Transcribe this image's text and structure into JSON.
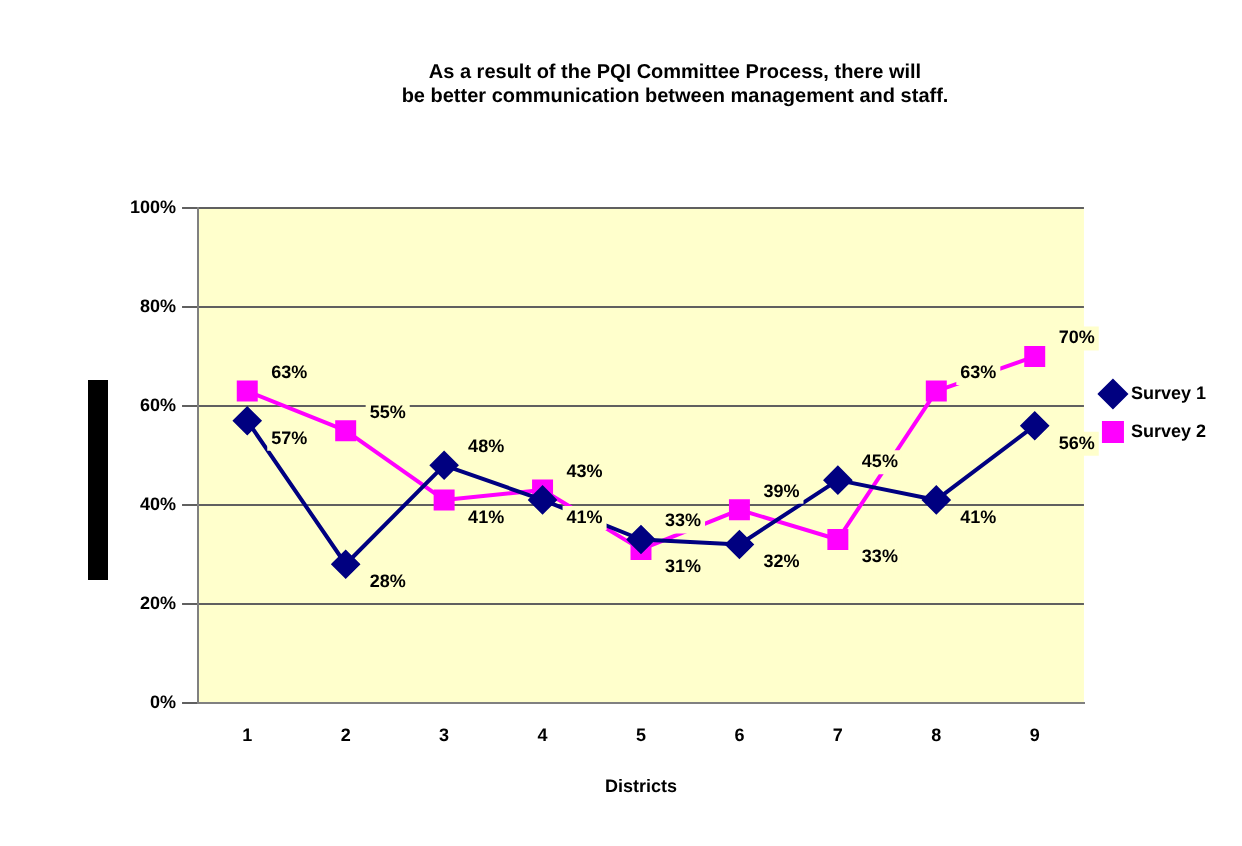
{
  "chart_data": {
    "type": "line",
    "title": "As a result of the PQI Committee Process, there will be better communication between management and staff.",
    "xlabel": "Districts",
    "categories": [
      "1",
      "2",
      "3",
      "4",
      "5",
      "6",
      "7",
      "8",
      "9"
    ],
    "series": [
      {
        "name": "Survey 1",
        "color": "#000080",
        "marker": "diamond",
        "values": [
          57,
          28,
          48,
          41,
          33,
          32,
          45,
          41,
          56
        ],
        "value_labels": [
          "57%",
          "28%",
          "48%",
          "41%",
          "33%",
          "32%",
          "45%",
          "41%",
          "56%"
        ]
      },
      {
        "name": "Survey 2",
        "color": "#ff00ff",
        "marker": "square",
        "values": [
          63,
          55,
          41,
          43,
          31,
          39,
          33,
          63,
          70
        ],
        "value_labels": [
          "63%",
          "55%",
          "41%",
          "43%",
          "31%",
          "39%",
          "33%",
          "63%",
          "70%"
        ]
      }
    ],
    "ylim": [
      0,
      100
    ],
    "yticks": [
      {
        "value": 0,
        "label": "0%"
      },
      {
        "value": 20,
        "label": "20%"
      },
      {
        "value": 40,
        "label": "40%"
      },
      {
        "value": 60,
        "label": "60%"
      },
      {
        "value": 80,
        "label": "80%"
      },
      {
        "value": 100,
        "label": "100%"
      }
    ],
    "grid": "y",
    "legend": "right"
  }
}
